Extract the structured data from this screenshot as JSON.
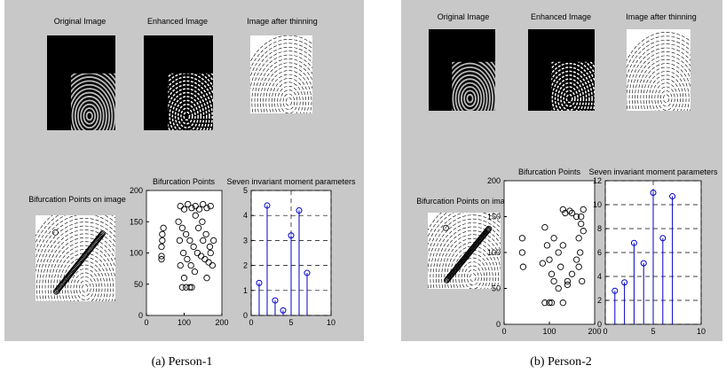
{
  "panels": [
    {
      "caption": "(a) Person-1",
      "image_titles": [
        "Original Image",
        "Enhanced Image",
        "Image after thinning",
        "Bifurcation Points on image"
      ]
    },
    {
      "caption": "(b) Person-2",
      "image_titles": [
        "Original Image",
        "Enhanced Image",
        "Image after thinning",
        "Bifurcation Points on image"
      ]
    }
  ],
  "chart_data": [
    {
      "type": "scatter",
      "title": "Bifurcation Points",
      "color": "#000000",
      "x": [
        40,
        40,
        42,
        42,
        45,
        40,
        90,
        100,
        110,
        120,
        130,
        140,
        150,
        160,
        170,
        85,
        95,
        105,
        115,
        125,
        135,
        145,
        155,
        165,
        175,
        88,
        98,
        108,
        118,
        128,
        138,
        148,
        158,
        168,
        178,
        90,
        100,
        95,
        105,
        115,
        120,
        160,
        170,
        150,
        130
      ],
      "values": [
        95,
        110,
        120,
        130,
        140,
        90,
        175,
        170,
        178,
        172,
        175,
        170,
        178,
        172,
        175,
        150,
        140,
        130,
        120,
        110,
        100,
        95,
        90,
        85,
        80,
        120,
        100,
        90,
        80,
        70,
        140,
        150,
        130,
        110,
        120,
        80,
        60,
        45,
        45,
        45,
        45,
        60,
        100,
        120,
        160
      ],
      "xlim": [
        0,
        200
      ],
      "xticks": [
        0,
        100,
        200
      ],
      "ylim": [
        0,
        200
      ],
      "yticks": [
        0,
        50,
        100,
        150,
        200
      ],
      "grid": false
    },
    {
      "type": "stem",
      "title": "Seven invariant moment parameters",
      "color": "#0000cc",
      "x": [
        1,
        2,
        3,
        4,
        5,
        6,
        7
      ],
      "values": [
        1.3,
        4.4,
        0.6,
        0.2,
        3.2,
        4.2,
        1.7
      ],
      "xlim": [
        0,
        10
      ],
      "xticks": [
        0,
        5,
        10
      ],
      "ylim": [
        0,
        5
      ],
      "yticks": [
        0,
        1,
        2,
        3,
        4,
        5
      ],
      "grid": true
    },
    {
      "type": "scatter",
      "title": "Bifurcation Points",
      "color": "#000000",
      "x": [
        40,
        40,
        42,
        90,
        95,
        100,
        105,
        110,
        85,
        120,
        125,
        130,
        140,
        150,
        160,
        165,
        170,
        175,
        130,
        135,
        145,
        150,
        160,
        170,
        175,
        120,
        90,
        100,
        105,
        130,
        140,
        165,
        168,
        172,
        110
      ],
      "values": [
        120,
        100,
        80,
        135,
        110,
        90,
        70,
        60,
        85,
        100,
        80,
        110,
        60,
        70,
        90,
        120,
        140,
        130,
        160,
        155,
        158,
        155,
        150,
        150,
        160,
        50,
        30,
        30,
        30,
        30,
        55,
        80,
        100,
        60,
        120
      ],
      "xlim": [
        0,
        200
      ],
      "xticks": [
        0,
        100,
        200
      ],
      "ylim": [
        0,
        200
      ],
      "yticks": [
        0,
        50,
        100,
        150,
        200
      ],
      "grid": false
    },
    {
      "type": "stem",
      "title": "Seven invariant moment parameters",
      "color": "#0000cc",
      "x": [
        1,
        2,
        3,
        4,
        5,
        6,
        7
      ],
      "values": [
        2.8,
        3.5,
        6.8,
        5.1,
        11,
        7.2,
        10.7
      ],
      "xlim": [
        0,
        10
      ],
      "xticks": [
        0,
        5,
        10
      ],
      "ylim": [
        0,
        12
      ],
      "yticks": [
        0,
        2,
        4,
        6,
        8,
        10,
        12
      ],
      "grid": true
    }
  ]
}
